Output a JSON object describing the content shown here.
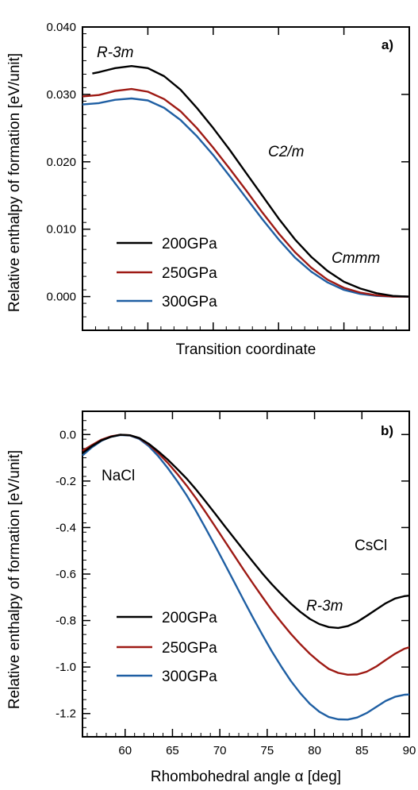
{
  "chart_data": [
    {
      "type": "line",
      "panel_label": "a)",
      "xlabel": "Transition coordinate",
      "ylabel": "Relative enthalpy of formation [eV/unit]",
      "xlim": [
        0,
        1
      ],
      "ylim": [
        -0.005,
        0.04
      ],
      "yticks": [
        "0.000",
        "0.010",
        "0.020",
        "0.030",
        "0.040"
      ],
      "ytick_values": [
        0.0,
        0.01,
        0.02,
        0.03,
        0.04
      ],
      "x_tick_values": [
        0.2,
        0.4,
        0.6,
        0.8,
        1.0
      ],
      "grid": false,
      "legend_position": "lower-left",
      "annotations": [
        {
          "text": "R-3m",
          "x": 0.07,
          "y": 0.0345
        },
        {
          "text": "C2/m",
          "x": 0.55,
          "y": 0.0225
        },
        {
          "text": "Cmmm",
          "x": 0.82,
          "y": 0.0078
        }
      ],
      "series": [
        {
          "name": "200GPa",
          "color": "#000000",
          "x": [
            0.03,
            0.05,
            0.1,
            0.15,
            0.2,
            0.25,
            0.3,
            0.35,
            0.4,
            0.45,
            0.5,
            0.55,
            0.6,
            0.65,
            0.7,
            0.75,
            0.8,
            0.85,
            0.9,
            0.95,
            1.0
          ],
          "y": [
            0.0331,
            0.0333,
            0.0339,
            0.0342,
            0.0339,
            0.0327,
            0.0307,
            0.028,
            0.025,
            0.0218,
            0.0184,
            0.015,
            0.0116,
            0.0085,
            0.0059,
            0.0038,
            0.0022,
            0.0012,
            0.0005,
            0.0001,
            0.0
          ]
        },
        {
          "name": "250GPa",
          "color": "#9e1a14",
          "x": [
            0.0,
            0.05,
            0.1,
            0.15,
            0.2,
            0.25,
            0.3,
            0.35,
            0.4,
            0.45,
            0.5,
            0.55,
            0.6,
            0.65,
            0.7,
            0.75,
            0.8,
            0.85,
            0.9,
            0.95,
            1.0
          ],
          "y": [
            0.0297,
            0.0299,
            0.0305,
            0.0308,
            0.0304,
            0.0293,
            0.0275,
            0.025,
            0.0221,
            0.019,
            0.0158,
            0.0125,
            0.0094,
            0.0066,
            0.0043,
            0.0025,
            0.0013,
            0.0006,
            0.0002,
            0.0,
            0.0
          ]
        },
        {
          "name": "300GPa",
          "color": "#1f5fa3",
          "x": [
            0.0,
            0.05,
            0.1,
            0.15,
            0.2,
            0.25,
            0.3,
            0.35,
            0.4,
            0.45,
            0.5,
            0.55,
            0.6,
            0.65,
            0.7,
            0.75,
            0.8,
            0.85,
            0.9,
            0.95,
            1.0
          ],
          "y": [
            0.0285,
            0.0287,
            0.0292,
            0.0294,
            0.0291,
            0.028,
            0.0262,
            0.0238,
            0.021,
            0.0179,
            0.0147,
            0.0115,
            0.0085,
            0.0058,
            0.0037,
            0.0021,
            0.001,
            0.0004,
            0.0001,
            0.0,
            0.0
          ]
        }
      ]
    },
    {
      "type": "line",
      "panel_label": "b)",
      "xlabel": "Rhombohedral angle α [deg]",
      "ylabel": "Relative enthalpy of formation [eV/unit]",
      "xlim": [
        55.5,
        90
      ],
      "ylim": [
        -1.3,
        0.1
      ],
      "xticks": [
        "60",
        "65",
        "70",
        "75",
        "80",
        "85",
        "90"
      ],
      "xtick_values": [
        60,
        65,
        70,
        75,
        80,
        85,
        90
      ],
      "yticks": [
        "0.0",
        "-0.2",
        "-0.4",
        "-0.6",
        "-0.8",
        "-1.0",
        "-1.2"
      ],
      "ytick_values": [
        0.0,
        -0.2,
        -0.4,
        -0.6,
        -0.8,
        -1.0,
        -1.2
      ],
      "grid": false,
      "legend_position": "lower-left",
      "annotations": [
        {
          "text": "NaCl",
          "x": 59.3,
          "y": -0.19,
          "italic": false
        },
        {
          "text": "CsCl",
          "x": 87.6,
          "y": -0.52,
          "italic": false
        },
        {
          "text": "R-3m",
          "x": 82.2,
          "y": -0.74,
          "italic": true
        }
      ],
      "series": [
        {
          "name": "200GPa",
          "color": "#000000",
          "x": [
            55.5,
            56.5,
            57.5,
            58.5,
            59.5,
            60.5,
            61.5,
            62.5,
            63.5,
            64.5,
            65.5,
            66.5,
            67.5,
            68.5,
            69.5,
            70.5,
            71.5,
            72.5,
            73.5,
            74.5,
            75.5,
            76.5,
            77.5,
            78.5,
            79.5,
            80.5,
            81.5,
            82.5,
            83.5,
            84.5,
            85.5,
            86.5,
            87.5,
            88.5,
            89.5,
            90
          ],
          "y": [
            -0.08,
            -0.05,
            -0.025,
            -0.01,
            -0.001,
            -0.003,
            -0.015,
            -0.04,
            -0.072,
            -0.108,
            -0.148,
            -0.19,
            -0.237,
            -0.288,
            -0.34,
            -0.393,
            -0.445,
            -0.497,
            -0.548,
            -0.598,
            -0.644,
            -0.687,
            -0.727,
            -0.763,
            -0.793,
            -0.815,
            -0.828,
            -0.832,
            -0.824,
            -0.806,
            -0.78,
            -0.753,
            -0.726,
            -0.705,
            -0.695,
            -0.693
          ]
        },
        {
          "name": "250GPa",
          "color": "#9e1a14",
          "x": [
            55.5,
            56.5,
            57.5,
            58.5,
            59.5,
            60.5,
            61.5,
            62.5,
            63.5,
            64.5,
            65.5,
            66.5,
            67.5,
            68.5,
            69.5,
            70.5,
            71.5,
            72.5,
            73.5,
            74.5,
            75.5,
            76.5,
            77.5,
            78.5,
            79.5,
            80.5,
            81.5,
            82.5,
            83.5,
            84.5,
            85.5,
            86.5,
            87.5,
            88.5,
            89.5,
            90
          ],
          "y": [
            -0.07,
            -0.045,
            -0.022,
            -0.008,
            -0.001,
            -0.003,
            -0.016,
            -0.043,
            -0.08,
            -0.122,
            -0.169,
            -0.22,
            -0.275,
            -0.334,
            -0.395,
            -0.457,
            -0.519,
            -0.581,
            -0.641,
            -0.699,
            -0.756,
            -0.808,
            -0.857,
            -0.902,
            -0.943,
            -0.978,
            -1.008,
            -1.025,
            -1.033,
            -1.032,
            -1.02,
            -0.998,
            -0.97,
            -0.943,
            -0.921,
            -0.915
          ]
        },
        {
          "name": "300GPa",
          "color": "#1f5fa3",
          "x": [
            55.5,
            56.5,
            57.5,
            58.5,
            59.5,
            60.5,
            61.5,
            62.5,
            63.5,
            64.5,
            65.5,
            66.5,
            67.5,
            68.5,
            69.5,
            70.5,
            71.5,
            72.5,
            73.5,
            74.5,
            75.5,
            76.5,
            77.5,
            78.5,
            79.5,
            80.5,
            81.5,
            82.5,
            83.5,
            84.5,
            85.5,
            86.5,
            87.5,
            88.5,
            89.5,
            90
          ],
          "y": [
            -0.09,
            -0.055,
            -0.027,
            -0.01,
            -0.002,
            -0.004,
            -0.019,
            -0.05,
            -0.093,
            -0.144,
            -0.2,
            -0.262,
            -0.33,
            -0.403,
            -0.478,
            -0.555,
            -0.633,
            -0.711,
            -0.788,
            -0.862,
            -0.933,
            -0.999,
            -1.06,
            -1.113,
            -1.158,
            -1.192,
            -1.215,
            -1.225,
            -1.226,
            -1.217,
            -1.198,
            -1.172,
            -1.146,
            -1.128,
            -1.119,
            -1.118
          ]
        }
      ]
    }
  ]
}
